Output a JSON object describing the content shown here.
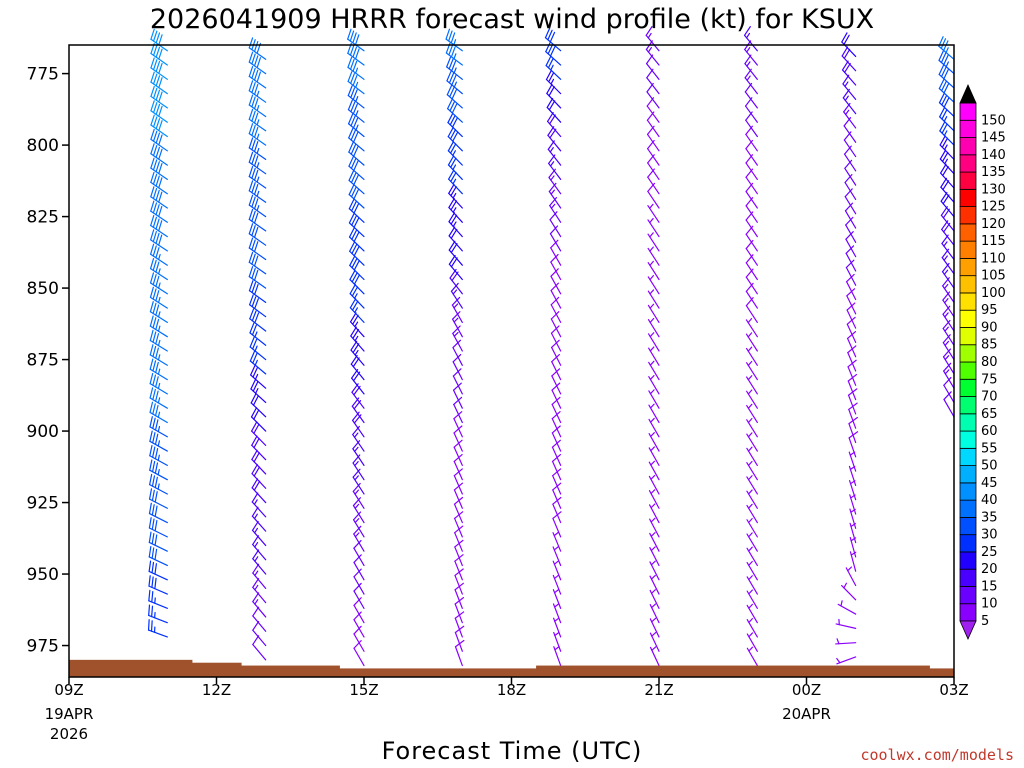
{
  "chart_data": {
    "type": "wind-profile",
    "title": "2026041909 HRRR forecast wind profile (kt) for KSUX",
    "xlabel": "Forecast Time (UTC)",
    "ylabel": "",
    "credit": "coolwx.com/models",
    "y_axis": {
      "range_hpa": [
        986,
        765
      ],
      "inverted": true,
      "ticks": [
        775,
        800,
        825,
        850,
        875,
        900,
        925,
        950,
        975
      ]
    },
    "x_axis": {
      "range_hours": [
        0,
        18
      ],
      "ticks": [
        {
          "hour": 0,
          "label": "09Z",
          "sub1": "19APR",
          "sub2": "2026"
        },
        {
          "hour": 3,
          "label": "12Z",
          "sub1": "",
          "sub2": ""
        },
        {
          "hour": 6,
          "label": "15Z",
          "sub1": "",
          "sub2": ""
        },
        {
          "hour": 9,
          "label": "18Z",
          "sub1": "",
          "sub2": ""
        },
        {
          "hour": 12,
          "label": "21Z",
          "sub1": "",
          "sub2": ""
        },
        {
          "hour": 15,
          "label": "00Z",
          "sub1": "20APR",
          "sub2": ""
        },
        {
          "hour": 18,
          "label": "03Z",
          "sub1": "",
          "sub2": ""
        }
      ]
    },
    "columns": [
      {
        "hour": 2,
        "bottom_hpa": 972,
        "profile": [
          [
            972,
            290,
            25
          ],
          [
            950,
            295,
            30
          ],
          [
            900,
            300,
            35
          ],
          [
            850,
            303,
            37
          ],
          [
            800,
            305,
            40
          ],
          [
            765,
            305,
            42
          ]
        ]
      },
      {
        "hour": 4,
        "bottom_hpa": 980,
        "profile": [
          [
            980,
            320,
            10
          ],
          [
            950,
            320,
            15
          ],
          [
            900,
            315,
            20
          ],
          [
            880,
            310,
            25
          ],
          [
            850,
            305,
            30
          ],
          [
            800,
            305,
            35
          ],
          [
            765,
            305,
            40
          ]
        ]
      },
      {
        "hour": 6,
        "bottom_hpa": 982,
        "profile": [
          [
            982,
            330,
            8
          ],
          [
            950,
            330,
            12
          ],
          [
            900,
            325,
            18
          ],
          [
            880,
            320,
            22
          ],
          [
            850,
            315,
            28
          ],
          [
            800,
            310,
            32
          ],
          [
            765,
            305,
            40
          ]
        ]
      },
      {
        "hour": 8,
        "bottom_hpa": 982,
        "profile": [
          [
            982,
            340,
            8
          ],
          [
            900,
            335,
            10
          ],
          [
            860,
            330,
            14
          ],
          [
            850,
            320,
            20
          ],
          [
            800,
            315,
            28
          ],
          [
            765,
            305,
            38
          ]
        ]
      },
      {
        "hour": 10,
        "bottom_hpa": 982,
        "profile": [
          [
            982,
            340,
            7
          ],
          [
            900,
            335,
            8
          ],
          [
            840,
            330,
            10
          ],
          [
            800,
            320,
            18
          ],
          [
            765,
            310,
            30
          ]
        ]
      },
      {
        "hour": 12,
        "bottom_hpa": 982,
        "profile": [
          [
            982,
            335,
            5
          ],
          [
            900,
            330,
            6
          ],
          [
            800,
            325,
            8
          ],
          [
            765,
            320,
            14
          ]
        ]
      },
      {
        "hour": 14,
        "bottom_hpa": 982,
        "profile": [
          [
            982,
            330,
            5
          ],
          [
            900,
            328,
            6
          ],
          [
            800,
            325,
            10
          ],
          [
            765,
            320,
            16
          ]
        ]
      },
      {
        "hour": 16,
        "bottom_hpa": 979,
        "profile": [
          [
            979,
            250,
            5
          ],
          [
            950,
            345,
            6
          ],
          [
            900,
            340,
            8
          ],
          [
            800,
            325,
            12
          ],
          [
            765,
            315,
            22
          ]
        ]
      },
      {
        "hour": 18,
        "bottom_hpa": 895,
        "profile": [
          [
            895,
            330,
            12
          ],
          [
            850,
            325,
            15
          ],
          [
            800,
            315,
            25
          ],
          [
            765,
            310,
            38
          ]
        ]
      }
    ],
    "terrain_hpa": [
      {
        "from": 0,
        "to": 2.5,
        "hpa": 980
      },
      {
        "from": 2.5,
        "to": 3.5,
        "hpa": 981
      },
      {
        "from": 3.5,
        "to": 5.5,
        "hpa": 982
      },
      {
        "from": 5.5,
        "to": 9.5,
        "hpa": 983
      },
      {
        "from": 9.5,
        "to": 17.5,
        "hpa": 982
      },
      {
        "from": 17.5,
        "to": 18,
        "hpa": 983
      }
    ],
    "colorbar": {
      "levels": [
        5,
        10,
        15,
        20,
        25,
        30,
        35,
        40,
        45,
        50,
        55,
        60,
        65,
        70,
        75,
        80,
        85,
        90,
        95,
        100,
        105,
        110,
        115,
        120,
        125,
        130,
        135,
        140,
        145,
        150
      ],
      "colors": [
        "#8a00ff",
        "#6a00ff",
        "#4a00ff",
        "#2200ff",
        "#0030ff",
        "#0050ff",
        "#0070ff",
        "#0090ff",
        "#00b0ff",
        "#00d8ff",
        "#00ffe0",
        "#00ffb0",
        "#00ff70",
        "#00ff30",
        "#50ff00",
        "#a0ff00",
        "#e0ff00",
        "#ffff00",
        "#ffe000",
        "#ffc000",
        "#ffa000",
        "#ff8000",
        "#ff6000",
        "#ff3000",
        "#ff0000",
        "#ff0040",
        "#ff0080",
        "#ff00b0",
        "#ff00e0",
        "#ff00ff"
      ],
      "top_arrow": "#000000",
      "bottom_arrow": "#a020f0"
    }
  }
}
